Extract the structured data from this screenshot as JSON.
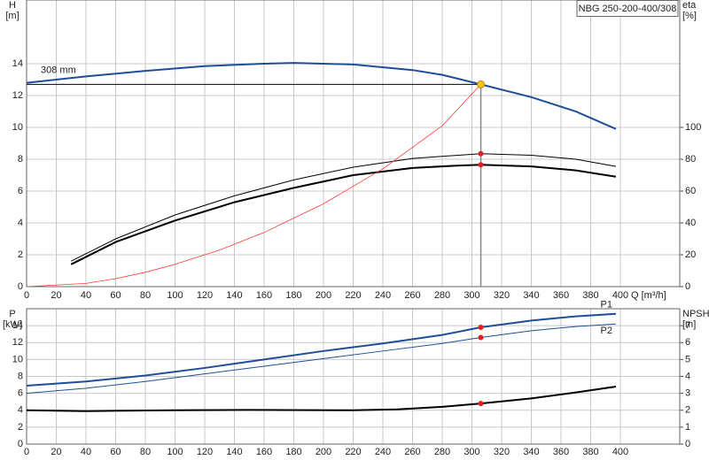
{
  "chart_data": [
    {
      "type": "line",
      "legend_box": "NBG 250-200-400/308",
      "ylabel": "H",
      "yunit": "[m]",
      "y2label": "eta",
      "y2unit": "[%]",
      "xlabel": "Q [m³/h]",
      "xlim": [
        0,
        440
      ],
      "xticks": [
        0,
        20,
        40,
        60,
        80,
        100,
        120,
        140,
        160,
        180,
        200,
        220,
        240,
        260,
        280,
        300,
        320,
        340,
        360,
        380,
        400
      ],
      "ylim": [
        0,
        18
      ],
      "yticks": [
        0,
        2,
        4,
        6,
        8,
        10,
        12,
        14
      ],
      "y2lim": [
        0,
        180
      ],
      "y2ticks": [
        0,
        20,
        40,
        60,
        80,
        100
      ],
      "grid": true,
      "series": [
        {
          "name": "308 mm",
          "color": "#1f4e96",
          "width": 2,
          "x": [
            0,
            40,
            80,
            120,
            160,
            180,
            220,
            260,
            280,
            306,
            340,
            370,
            397
          ],
          "values": [
            12.8,
            13.2,
            13.55,
            13.85,
            14.0,
            14.05,
            13.95,
            13.6,
            13.3,
            12.7,
            11.9,
            11.0,
            9.9
          ]
        },
        {
          "color": "#000000",
          "width": 1,
          "axis": "y2",
          "x": [
            30,
            60,
            100,
            140,
            180,
            220,
            260,
            306,
            340,
            370,
            397
          ],
          "values": [
            16,
            30,
            45,
            57,
            67,
            75,
            80.5,
            83.5,
            82.5,
            80,
            75.5
          ]
        },
        {
          "color": "#000000",
          "width": 2,
          "axis": "y2",
          "x": [
            30,
            60,
            100,
            140,
            180,
            220,
            260,
            290,
            306,
            340,
            370,
            397
          ],
          "values": [
            14,
            28,
            41.5,
            53,
            62,
            70,
            74.5,
            76,
            76.5,
            75.5,
            73,
            69
          ]
        },
        {
          "color": "#ff3b3b",
          "width": 0.8,
          "x": [
            0,
            40,
            60,
            80,
            100,
            130,
            160,
            200,
            240,
            280,
            306
          ],
          "values": [
            0,
            0.2,
            0.5,
            0.9,
            1.4,
            2.3,
            3.4,
            5.2,
            7.4,
            10.1,
            12.7
          ]
        }
      ],
      "duty_point": {
        "x": 306,
        "y": 12.7,
        "color": "#f5c518"
      },
      "markers": [
        {
          "x": 306,
          "y": 83.5,
          "axis": "y2",
          "color": "#e0201c"
        },
        {
          "x": 306,
          "y": 76.5,
          "axis": "y2",
          "color": "#e0201c"
        }
      ]
    },
    {
      "type": "line",
      "ylabel": "P",
      "yunit": "[kW]",
      "y2label": "NPSH",
      "y2unit": "[m]",
      "xlim": [
        0,
        440
      ],
      "xticks": [
        0,
        20,
        40,
        60,
        80,
        100,
        120,
        140,
        160,
        180,
        200,
        220,
        240,
        260,
        280,
        300,
        320,
        340,
        360,
        380,
        400
      ],
      "ylim": [
        0,
        16
      ],
      "yticks": [
        0,
        2,
        4,
        6,
        8,
        10,
        12,
        14
      ],
      "y2lim": [
        0,
        8
      ],
      "y2ticks": [
        0,
        1,
        2,
        3,
        4,
        5,
        6,
        7
      ],
      "grid": true,
      "series": [
        {
          "name": "P1",
          "color": "#1f4e96",
          "width": 2,
          "x": [
            0,
            40,
            80,
            120,
            160,
            200,
            240,
            280,
            306,
            340,
            370,
            397
          ],
          "values": [
            6.9,
            7.4,
            8.1,
            9.0,
            10.0,
            11.0,
            11.9,
            12.9,
            13.8,
            14.6,
            15.1,
            15.4
          ]
        },
        {
          "name": "P2",
          "color": "#1f4e96",
          "width": 1,
          "x": [
            0,
            40,
            80,
            120,
            160,
            200,
            240,
            280,
            306,
            340,
            370,
            397
          ],
          "values": [
            6.0,
            6.6,
            7.4,
            8.3,
            9.2,
            10.1,
            11.0,
            11.9,
            12.6,
            13.4,
            13.9,
            14.2
          ]
        },
        {
          "color": "#000000",
          "width": 2,
          "axis": "y2",
          "x": [
            0,
            40,
            100,
            150,
            220,
            250,
            280,
            306,
            340,
            370,
            397
          ],
          "values": [
            2.0,
            1.95,
            2.0,
            2.02,
            2.0,
            2.05,
            2.2,
            2.4,
            2.7,
            3.05,
            3.4
          ]
        }
      ],
      "markers": [
        {
          "x": 306,
          "y": 13.8,
          "color": "#e0201c"
        },
        {
          "x": 306,
          "y": 12.6,
          "color": "#e0201c"
        },
        {
          "x": 306,
          "y": 2.4,
          "axis": "y2",
          "color": "#e0201c"
        }
      ]
    }
  ]
}
